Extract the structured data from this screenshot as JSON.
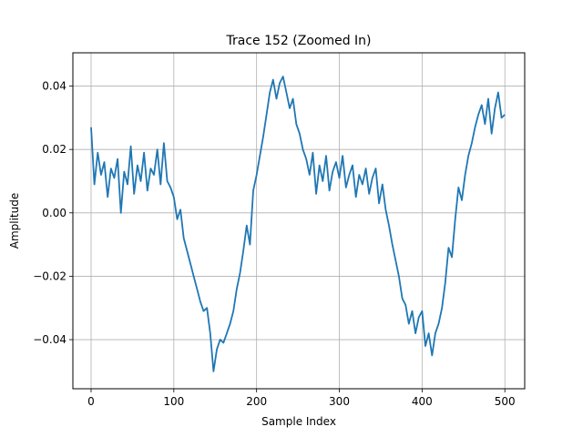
{
  "chart_data": {
    "type": "line",
    "title": "Trace 152 (Zoomed In)",
    "xlabel": "Sample Index",
    "ylabel": "Amplitude",
    "xlim": [
      -22,
      524
    ],
    "ylim": [
      -0.0555,
      0.0505
    ],
    "xticks": [
      0,
      100,
      200,
      300,
      400,
      500
    ],
    "xtick_labels": [
      "0",
      "100",
      "200",
      "300",
      "400",
      "500"
    ],
    "yticks": [
      -0.04,
      -0.02,
      0.0,
      0.02,
      0.04
    ],
    "ytick_labels": [
      "−0.04",
      "−0.02",
      "0.00",
      "0.02",
      "0.04"
    ],
    "grid": true,
    "series": [
      {
        "color": "#1f77b4",
        "x": [
          0,
          4,
          8,
          12,
          16,
          20,
          24,
          28,
          32,
          36,
          40,
          44,
          48,
          52,
          56,
          60,
          64,
          68,
          72,
          76,
          80,
          84,
          88,
          92,
          96,
          100,
          104,
          108,
          112,
          116,
          120,
          124,
          128,
          132,
          136,
          140,
          144,
          148,
          152,
          156,
          160,
          164,
          168,
          172,
          176,
          180,
          184,
          188,
          192,
          196,
          200,
          204,
          208,
          212,
          216,
          220,
          224,
          228,
          232,
          236,
          240,
          244,
          248,
          252,
          256,
          260,
          264,
          268,
          272,
          276,
          280,
          284,
          288,
          292,
          296,
          300,
          304,
          308,
          312,
          316,
          320,
          324,
          328,
          332,
          336,
          340,
          344,
          348,
          352,
          356,
          360,
          364,
          368,
          372,
          376,
          380,
          384,
          388,
          392,
          396,
          400,
          404,
          408,
          412,
          416,
          420,
          424,
          428,
          432,
          436,
          440,
          444,
          448,
          452,
          456,
          460,
          464,
          468,
          472,
          476,
          480,
          484,
          488,
          492,
          496,
          500
        ],
        "y": [
          0.027,
          0.009,
          0.019,
          0.012,
          0.016,
          0.005,
          0.014,
          0.011,
          0.017,
          0.0,
          0.013,
          0.009,
          0.021,
          0.006,
          0.015,
          0.01,
          0.019,
          0.007,
          0.014,
          0.012,
          0.02,
          0.009,
          0.022,
          0.01,
          0.008,
          0.005,
          -0.002,
          0.001,
          -0.008,
          -0.012,
          -0.016,
          -0.02,
          -0.024,
          -0.028,
          -0.031,
          -0.03,
          -0.038,
          -0.05,
          -0.043,
          -0.04,
          -0.041,
          -0.038,
          -0.035,
          -0.031,
          -0.024,
          -0.019,
          -0.012,
          -0.004,
          -0.01,
          0.007,
          0.012,
          0.018,
          0.024,
          0.031,
          0.038,
          0.042,
          0.036,
          0.041,
          0.043,
          0.038,
          0.033,
          0.036,
          0.028,
          0.025,
          0.02,
          0.017,
          0.012,
          0.019,
          0.006,
          0.015,
          0.01,
          0.018,
          0.007,
          0.013,
          0.016,
          0.011,
          0.018,
          0.008,
          0.012,
          0.015,
          0.005,
          0.012,
          0.009,
          0.014,
          0.006,
          0.011,
          0.014,
          0.003,
          0.009,
          0.001,
          -0.004,
          -0.01,
          -0.015,
          -0.02,
          -0.027,
          -0.029,
          -0.035,
          -0.031,
          -0.038,
          -0.033,
          -0.031,
          -0.042,
          -0.038,
          -0.045,
          -0.038,
          -0.035,
          -0.03,
          -0.022,
          -0.011,
          -0.014,
          -0.002,
          0.008,
          0.004,
          0.012,
          0.018,
          0.022,
          0.027,
          0.031,
          0.034,
          0.028,
          0.036,
          0.025,
          0.033,
          0.038,
          0.03,
          0.031
        ]
      }
    ]
  }
}
